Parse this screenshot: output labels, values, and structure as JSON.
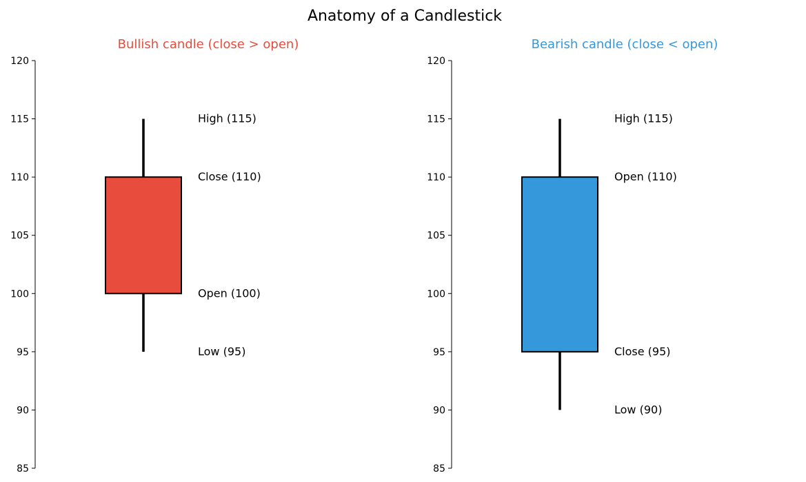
{
  "figure_title": "Anatomy of a Candlestick",
  "chart_data": [
    {
      "type": "candlestick",
      "title": "Bullish candle (close > open)",
      "title_color": "#e74c3c",
      "body_color": "#e74c3c",
      "ylim": [
        85,
        120
      ],
      "yticks": [
        85,
        90,
        95,
        100,
        105,
        110,
        115,
        120
      ],
      "ytick_labels": [
        "85",
        "90",
        "95",
        "100",
        "105",
        "110",
        "115",
        "120"
      ],
      "candle": {
        "open": 100,
        "high": 115,
        "low": 95,
        "close": 110
      },
      "annotations": [
        {
          "y": 115,
          "text": "High (115)"
        },
        {
          "y": 110,
          "text": "Close (110)"
        },
        {
          "y": 100,
          "text": "Open (100)"
        },
        {
          "y": 95,
          "text": "Low (95)"
        }
      ]
    },
    {
      "type": "candlestick",
      "title": "Bearish candle (close < open)",
      "title_color": "#3498db",
      "body_color": "#3498db",
      "ylim": [
        85,
        120
      ],
      "yticks": [
        85,
        90,
        95,
        100,
        105,
        110,
        115,
        120
      ],
      "ytick_labels": [
        "85",
        "90",
        "95",
        "100",
        "105",
        "110",
        "115",
        "120"
      ],
      "candle": {
        "open": 110,
        "high": 115,
        "low": 90,
        "close": 95
      },
      "annotations": [
        {
          "y": 115,
          "text": "High (115)"
        },
        {
          "y": 110,
          "text": "Open (110)"
        },
        {
          "y": 95,
          "text": "Close (95)"
        },
        {
          "y": 90,
          "text": "Low (90)"
        }
      ]
    }
  ]
}
